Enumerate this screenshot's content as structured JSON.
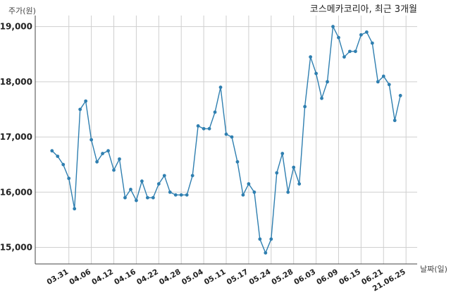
{
  "chart_data": {
    "type": "line",
    "title": "코스메카코리아, 최근 3개월",
    "ylabel": "주가(원)",
    "xlabel": "날짜(일)",
    "ylim": [
      14700,
      19200
    ],
    "yticks": [
      15000,
      16000,
      17000,
      18000,
      19000
    ],
    "ytick_labels": [
      "15,000",
      "16,000",
      "17,000",
      "18,000",
      "19,000"
    ],
    "xtick_labels": [
      "03.31",
      "04.06",
      "04.12",
      "04.16",
      "04.22",
      "04.28",
      "05.04",
      "05.11",
      "05.17",
      "05.24",
      "05.28",
      "06.03",
      "06.09",
      "06.15",
      "06.21",
      "21.06.25"
    ],
    "xtick_index": [
      3,
      7,
      11,
      15,
      19,
      23,
      27,
      31,
      35,
      39,
      43,
      47,
      51,
      55,
      59,
      63
    ],
    "grid": true,
    "series": [
      {
        "values": [
          16750,
          16650,
          16500,
          16250,
          15700,
          17500,
          17650,
          16950,
          16550,
          16700,
          16750,
          16400,
          16600,
          15900,
          16050,
          15850,
          16200,
          15900,
          15900,
          16150,
          16300,
          16000,
          15950,
          15950,
          15950,
          16300,
          17200,
          17150,
          17150,
          17450,
          17900,
          17050,
          17000,
          16550,
          15950,
          16150,
          16000,
          15150,
          14900,
          15150,
          16350,
          16700,
          16000,
          16450,
          16150,
          17550,
          18450,
          18150,
          17700,
          18000,
          19000,
          18800,
          18450,
          18550,
          18550,
          18850,
          18900,
          18700,
          18000,
          18100,
          17950,
          17300,
          17750
        ]
      }
    ]
  }
}
